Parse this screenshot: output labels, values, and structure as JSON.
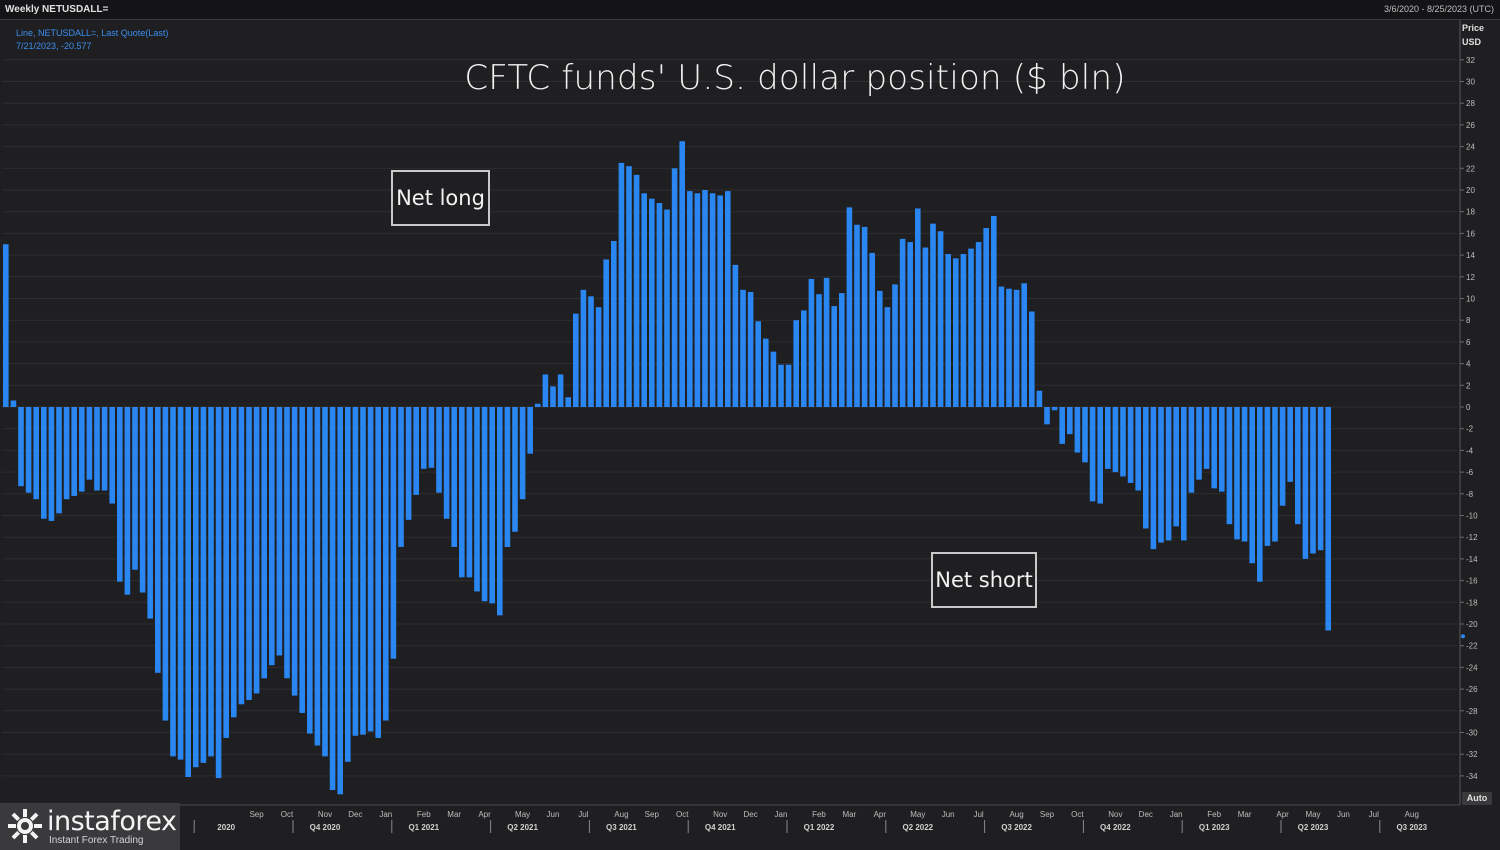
{
  "header": {
    "left_label": "Weekly NETUSDALL=",
    "right_label": "3/6/2020 - 8/25/2023 (UTC)"
  },
  "legend": {
    "line1": "Line, NETUSDALL=, Last Quote(Last)",
    "line2": "7/21/2023, -20.577"
  },
  "axis_header": {
    "line1": "Price",
    "line2": "USD"
  },
  "auto_label": "Auto",
  "watermark": {
    "brand": "instaforex",
    "tagline": "Instant Forex Trading"
  },
  "colors": {
    "bar": "#2a86f0",
    "background": "#1f1f21",
    "grid": "#2f2f31",
    "axis_text": "#bdbdbd"
  },
  "chart_data": {
    "type": "bar",
    "title": "CFTC funds' U.S. dollar position ($ bln)",
    "annotations": [
      "Net long",
      "Net short"
    ],
    "ylabel": "USD",
    "ylim": [
      -36,
      34
    ],
    "y_ticks": [
      32,
      30,
      28,
      26,
      24,
      22,
      20,
      18,
      16,
      14,
      12,
      10,
      8,
      6,
      4,
      2,
      0,
      -2,
      -4,
      -6,
      -8,
      -10,
      -12,
      -14,
      -16,
      -18,
      -20,
      -22,
      -24,
      -26,
      -28,
      -30,
      -32,
      -34
    ],
    "last_value": -20.577,
    "x_month_labels": [
      {
        "label": "Sep",
        "index": 33
      },
      {
        "label": "Oct",
        "index": 37
      },
      {
        "label": "Nov",
        "index": 42
      },
      {
        "label": "Dec",
        "index": 46
      },
      {
        "label": "Jan",
        "index": 50
      },
      {
        "label": "Feb",
        "index": 55
      },
      {
        "label": "Mar",
        "index": 59
      },
      {
        "label": "Apr",
        "index": 63
      },
      {
        "label": "May",
        "index": 68
      },
      {
        "label": "Jun",
        "index": 72
      },
      {
        "label": "Jul",
        "index": 76
      },
      {
        "label": "Aug",
        "index": 81
      },
      {
        "label": "Sep",
        "index": 85
      },
      {
        "label": "Oct",
        "index": 89
      },
      {
        "label": "Nov",
        "index": 94
      },
      {
        "label": "Dec",
        "index": 98
      },
      {
        "label": "Jan",
        "index": 102
      },
      {
        "label": "Feb",
        "index": 107
      },
      {
        "label": "Mar",
        "index": 111
      },
      {
        "label": "Apr",
        "index": 115
      },
      {
        "label": "May",
        "index": 120
      },
      {
        "label": "Jun",
        "index": 124
      },
      {
        "label": "Jul",
        "index": 128
      },
      {
        "label": "Aug",
        "index": 133
      },
      {
        "label": "Sep",
        "index": 137
      },
      {
        "label": "Oct",
        "index": 141
      },
      {
        "label": "Nov",
        "index": 146
      },
      {
        "label": "Dec",
        "index": 150
      },
      {
        "label": "Jan",
        "index": 154
      },
      {
        "label": "Feb",
        "index": 159
      },
      {
        "label": "Mar",
        "index": 163
      },
      {
        "label": "Apr",
        "index": 168
      },
      {
        "label": "May",
        "index": 172
      },
      {
        "label": "Jun",
        "index": 176
      },
      {
        "label": "Jul",
        "index": 180
      },
      {
        "label": "Aug",
        "index": 185
      }
    ],
    "x_quarter_labels": [
      {
        "label": "2020",
        "index": 29
      },
      {
        "label": "Q4 2020",
        "index": 42
      },
      {
        "label": "Q1 2021",
        "index": 55
      },
      {
        "label": "Q2 2021",
        "index": 68
      },
      {
        "label": "Q3 2021",
        "index": 81
      },
      {
        "label": "Q4 2021",
        "index": 94
      },
      {
        "label": "Q1 2022",
        "index": 107
      },
      {
        "label": "Q2 2022",
        "index": 120
      },
      {
        "label": "Q3 2022",
        "index": 133
      },
      {
        "label": "Q4 2022",
        "index": 146
      },
      {
        "label": "Q1 2023",
        "index": 159
      },
      {
        "label": "Q2 2023",
        "index": 172
      },
      {
        "label": "Q3 2023",
        "index": 185
      }
    ],
    "values": [
      15,
      0.6,
      -7.3,
      -7.9,
      -8.5,
      -10.3,
      -10.5,
      -9.8,
      -8.5,
      -8.2,
      -7.8,
      -6.7,
      -7.7,
      -7.7,
      -8.9,
      -16.1,
      -17.3,
      -15.0,
      -17.1,
      -19.5,
      -24.5,
      -28.9,
      -32.2,
      -32.5,
      -34.1,
      -33.2,
      -32.8,
      -32.2,
      -34.2,
      -30.5,
      -28.6,
      -27.4,
      -27.0,
      -26.4,
      -25.0,
      -23.8,
      -22.9,
      -25.0,
      -26.6,
      -28.2,
      -30.1,
      -31.2,
      -32.2,
      -35.3,
      -35.7,
      -32.7,
      -30.3,
      -30.2,
      -29.9,
      -30.5,
      -28.9,
      -23.2,
      -12.9,
      -10.4,
      -8.1,
      -5.7,
      -5.6,
      -7.9,
      -10.3,
      -12.9,
      -15.7,
      -15.7,
      -17.0,
      -17.9,
      -18.1,
      -19.2,
      -12.9,
      -11.5,
      -8.5,
      -4.3,
      0.3,
      3.0,
      1.9,
      3.0,
      0.9,
      8.6,
      10.8,
      10.2,
      9.2,
      13.6,
      15.3,
      22.5,
      22.2,
      21.4,
      19.7,
      19.2,
      18.8,
      18.2,
      22.0,
      24.5,
      19.9,
      19.7,
      20.0,
      19.7,
      19.5,
      19.9,
      13.1,
      10.8,
      10.6,
      7.9,
      6.3,
      5.1,
      3.9,
      3.9,
      8.0,
      8.9,
      11.8,
      10.4,
      11.9,
      9.3,
      10.5,
      18.4,
      16.8,
      16.6,
      14.2,
      10.7,
      9.2,
      11.3,
      15.5,
      15.2,
      18.3,
      14.7,
      16.9,
      16.2,
      14.1,
      13.7,
      14.1,
      14.6,
      15.2,
      16.5,
      17.6,
      11.1,
      10.9,
      10.8,
      11.4,
      8.8,
      1.5,
      -1.6,
      -0.3,
      -3.4,
      -2.5,
      -4.2,
      -5.1,
      -8.7,
      -8.9,
      -5.7,
      -6.0,
      -6.4,
      -7.0,
      -7.7,
      -11.2,
      -13.1,
      -12.5,
      -12.3,
      -11.0,
      -12.3,
      -7.9,
      -6.7,
      -5.7,
      -7.5,
      -7.8,
      -10.8,
      -12.2,
      -12.4,
      -14.4,
      -16.1,
      -12.8,
      -12.4,
      -9.1,
      -6.9,
      -10.8,
      -14.0,
      -13.5,
      -13.2,
      -20.6
    ]
  }
}
